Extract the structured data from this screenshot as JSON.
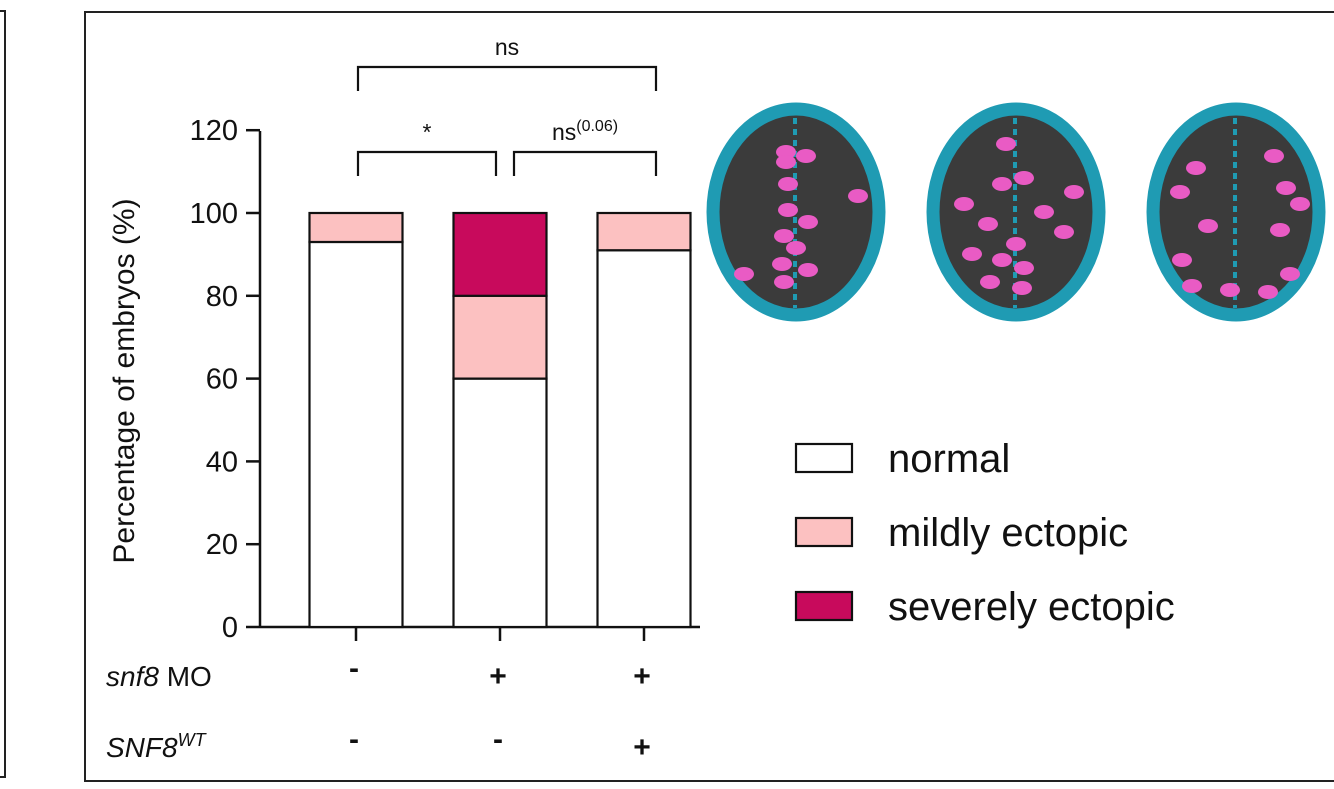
{
  "chart_data": {
    "type": "bar",
    "stacked": true,
    "ylabel": "Percentage of embryos (%)",
    "ylim": [
      0,
      120
    ],
    "yticks": [
      "0",
      "20",
      "40",
      "60",
      "80",
      "100",
      "120"
    ],
    "groups": 3,
    "series": [
      {
        "name": "normal",
        "color": "#ffffff",
        "values": [
          93,
          60,
          91
        ]
      },
      {
        "name": "mildly ectopic",
        "color": "#fcc1c1",
        "values": [
          7,
          20,
          9
        ]
      },
      {
        "name": "severely ectopic",
        "color": "#c80a5c",
        "values": [
          0,
          20,
          0
        ]
      }
    ],
    "conditions": [
      {
        "label": "snf8",
        "label_suffix": " MO",
        "italic_part": "snf8",
        "values": [
          "-",
          "+",
          "+"
        ]
      },
      {
        "label": "SNF8",
        "superscript": "WT",
        "values": [
          "-",
          "-",
          "+"
        ]
      }
    ],
    "significance": [
      {
        "from": 0,
        "to": 2,
        "label": "ns",
        "superscript": ""
      },
      {
        "from": 0,
        "to": 1,
        "label": "*",
        "superscript": ""
      },
      {
        "from": 1,
        "to": 2,
        "label": "ns",
        "superscript": "(0.06)"
      }
    ],
    "legend_position": "right"
  },
  "illustrations": {
    "outline_color": "#1f9bb3",
    "fill_color": "#3b3b3b",
    "cell_color": "#e95bc4",
    "items": [
      "normal",
      "mildly ectopic",
      "severely ectopic"
    ]
  }
}
